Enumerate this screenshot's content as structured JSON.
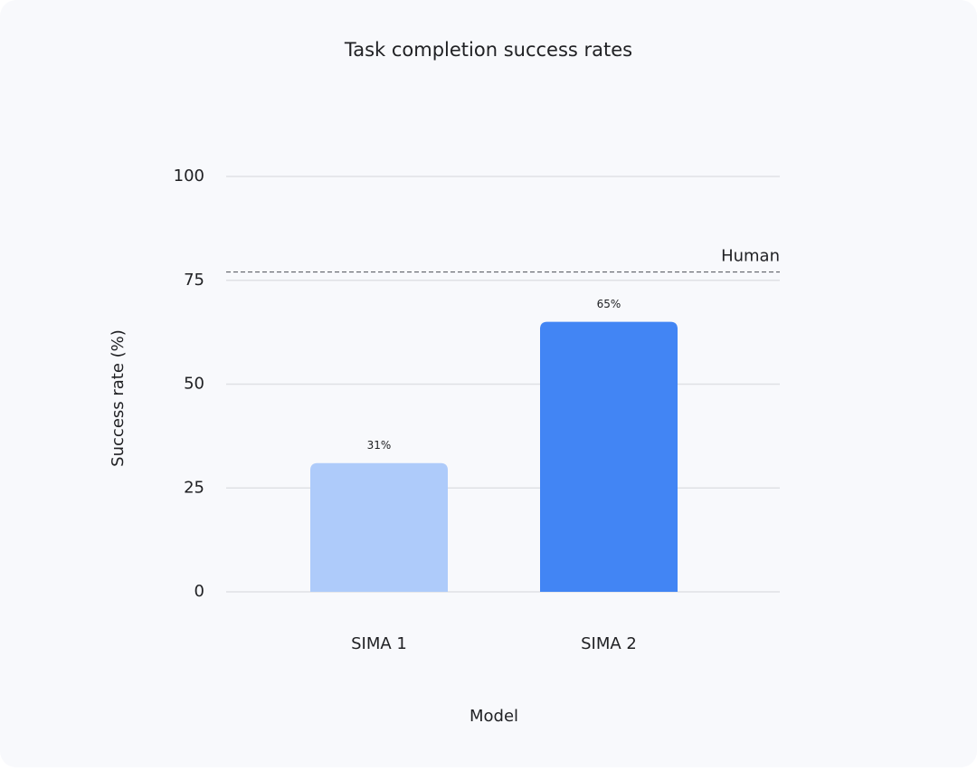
{
  "chart_data": {
    "type": "bar",
    "title": "Task completion success rates",
    "x_label": "Model",
    "y_label": "Success rate (%)",
    "categories": [
      "SIMA 1",
      "SIMA 2"
    ],
    "values": [
      31,
      65
    ],
    "value_labels": [
      "31%",
      "65%"
    ],
    "colors": [
      "#aecbfa",
      "#4285f4"
    ],
    "ylim": [
      0,
      100
    ],
    "yticks": [
      0,
      25,
      50,
      75,
      100
    ],
    "grid": true,
    "reference_lines": [
      {
        "value": 77,
        "label": "Human"
      }
    ]
  }
}
